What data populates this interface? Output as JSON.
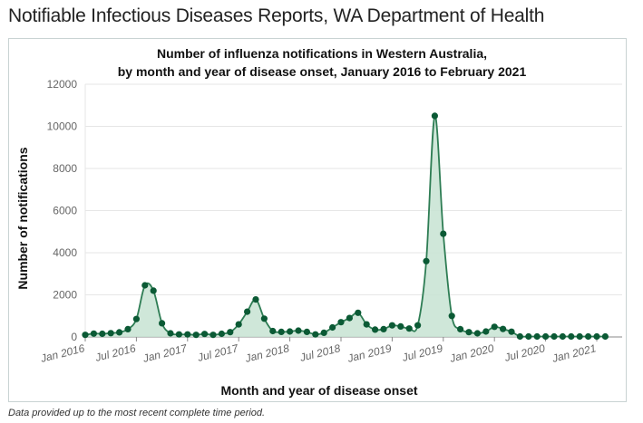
{
  "page": {
    "title": "Notifiable Infectious Diseases Reports, WA Department of Health",
    "footnote": "Data provided up to the most recent complete time period."
  },
  "colors": {
    "line": "#2e7d54",
    "area": "#c7e3d2",
    "marker": "#0b5a35",
    "grid": "#e6e6e6",
    "axis": "#888888"
  },
  "chart_data": {
    "type": "area",
    "title_lines": [
      "Number of influenza notifications in Western Australia,",
      "by month and year of disease onset, January 2016 to February 2021"
    ],
    "xlabel": "Month and year of disease onset",
    "ylabel": "Number of notifications",
    "ylim": [
      0,
      12000
    ],
    "yticks": [
      0,
      2000,
      4000,
      6000,
      8000,
      10000,
      12000
    ],
    "xtick_labels": [
      "Jan 2016",
      "Jul 2016",
      "Jan 2017",
      "Jul 2017",
      "Jan 2018",
      "Jul 2018",
      "Jan 2019",
      "Jul 2019",
      "Jan 2020",
      "Jul 2020",
      "Jan 2021"
    ],
    "grid": "horizontal",
    "legend": "none",
    "x": [
      "Jan 2016",
      "Feb 2016",
      "Mar 2016",
      "Apr 2016",
      "May 2016",
      "Jun 2016",
      "Jul 2016",
      "Aug 2016",
      "Sep 2016",
      "Oct 2016",
      "Nov 2016",
      "Dec 2016",
      "Jan 2017",
      "Feb 2017",
      "Mar 2017",
      "Apr 2017",
      "May 2017",
      "Jun 2017",
      "Jul 2017",
      "Aug 2017",
      "Sep 2017",
      "Oct 2017",
      "Nov 2017",
      "Dec 2017",
      "Jan 2018",
      "Feb 2018",
      "Mar 2018",
      "Apr 2018",
      "May 2018",
      "Jun 2018",
      "Jul 2018",
      "Aug 2018",
      "Sep 2018",
      "Oct 2018",
      "Nov 2018",
      "Dec 2018",
      "Jan 2019",
      "Feb 2019",
      "Mar 2019",
      "Apr 2019",
      "May 2019",
      "Jun 2019",
      "Jul 2019",
      "Aug 2019",
      "Sep 2019",
      "Oct 2019",
      "Nov 2019",
      "Dec 2019",
      "Jan 2020",
      "Feb 2020",
      "Mar 2020",
      "Apr 2020",
      "May 2020",
      "Jun 2020",
      "Jul 2020",
      "Aug 2020",
      "Sep 2020",
      "Oct 2020",
      "Nov 2020",
      "Dec 2020",
      "Jan 2021",
      "Feb 2021"
    ],
    "series": [
      {
        "values": [
          100,
          160,
          150,
          180,
          220,
          370,
          850,
          2450,
          2200,
          650,
          170,
          120,
          120,
          100,
          140,
          100,
          150,
          230,
          600,
          1200,
          1780,
          870,
          280,
          240,
          260,
          300,
          240,
          120,
          200,
          450,
          700,
          900,
          1150,
          600,
          350,
          370,
          550,
          500,
          400,
          550,
          3600,
          10500,
          4900,
          1000,
          370,
          230,
          170,
          260,
          480,
          380,
          250,
          20,
          20,
          20,
          20,
          20,
          20,
          20,
          20,
          20,
          20,
          20
        ]
      }
    ]
  }
}
